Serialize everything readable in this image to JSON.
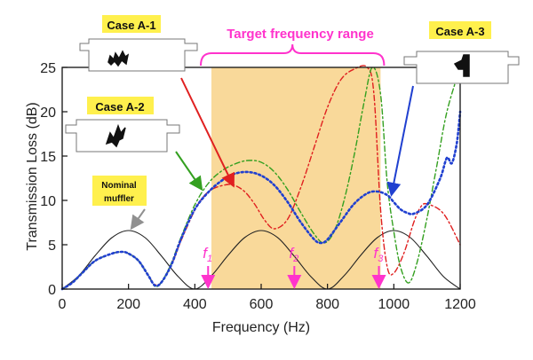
{
  "chart_data": {
    "type": "line",
    "xlabel": "Frequency (Hz)",
    "ylabel": "Transmission Loss (dB)",
    "xlim": [
      0,
      1200
    ],
    "ylim": [
      0,
      25
    ],
    "xticks": [
      0,
      200,
      400,
      600,
      800,
      1000,
      1200
    ],
    "yticks": [
      0,
      5,
      10,
      15,
      20,
      25
    ],
    "grid": false,
    "target_range": {
      "label": "Target frequency range",
      "x0": 450,
      "x1": 960,
      "color": "#f9d99a"
    },
    "frequency_markers": [
      {
        "label": "f",
        "sub": "1",
        "x": 440
      },
      {
        "label": "f",
        "sub": "2",
        "x": 700
      },
      {
        "label": "f",
        "sub": "3",
        "x": 955
      }
    ],
    "series": [
      {
        "key": "nominal",
        "color": "#222222",
        "dash": "",
        "width": 1.1,
        "x": [
          0,
          50,
          100,
          150,
          200,
          250,
          300,
          350,
          400,
          450,
          500,
          550,
          600,
          650,
          700,
          750,
          800,
          850,
          900,
          950,
          1000,
          1050,
          1100,
          1150,
          1200
        ],
        "y": [
          0,
          1.5,
          3.8,
          5.8,
          6.6,
          5.8,
          3.7,
          1.4,
          0.0,
          1.5,
          3.8,
          5.8,
          6.6,
          5.8,
          3.7,
          1.4,
          0.0,
          1.5,
          3.8,
          5.8,
          6.6,
          5.8,
          3.7,
          1.4,
          0.0
        ]
      },
      {
        "key": "A-1",
        "color": "#e02020",
        "dash": "6,3,2,3",
        "width": 1.4,
        "x": [
          0,
          30,
          60,
          100,
          150,
          180,
          200,
          230,
          260,
          280,
          300,
          330,
          360,
          400,
          430,
          460,
          500,
          520,
          550,
          580,
          610,
          640,
          680,
          720,
          760,
          800,
          840,
          880,
          920,
          940,
          960,
          980,
          1000,
          1030,
          1060,
          1080,
          1100,
          1150,
          1200
        ],
        "y": [
          0,
          0.7,
          1.8,
          3.2,
          4.0,
          4.2,
          4.0,
          3.2,
          1.5,
          0.5,
          0.8,
          2.8,
          5.6,
          8.9,
          10.6,
          11.4,
          11.8,
          11.7,
          11.0,
          9.6,
          7.8,
          6.8,
          7.9,
          11.5,
          16.0,
          20.5,
          23.6,
          24.8,
          25.0,
          22.0,
          9.0,
          2.5,
          1.8,
          4.0,
          7.5,
          9.2,
          9.6,
          8.5,
          5.0
        ]
      },
      {
        "key": "A-2",
        "color": "#34a020",
        "dash": "6,3,2,3",
        "width": 1.4,
        "x": [
          0,
          30,
          60,
          100,
          150,
          180,
          200,
          230,
          260,
          280,
          300,
          330,
          360,
          400,
          440,
          480,
          520,
          560,
          600,
          640,
          680,
          720,
          760,
          790,
          820,
          850,
          880,
          910,
          935,
          960,
          980,
          1000,
          1020,
          1045,
          1070,
          1100,
          1130,
          1160,
          1200
        ],
        "y": [
          0,
          0.7,
          1.8,
          3.2,
          4.0,
          4.2,
          4.0,
          3.2,
          1.5,
          0.3,
          0.8,
          3.0,
          6.0,
          9.5,
          11.9,
          13.3,
          14.1,
          14.5,
          14.3,
          13.2,
          11.2,
          8.6,
          6.2,
          5.2,
          6.5,
          10.0,
          15.0,
          21.0,
          25.0,
          22.0,
          12.0,
          6.5,
          2.5,
          0.7,
          3.0,
          8.0,
          14.0,
          20.0,
          25.0
        ]
      },
      {
        "key": "A-3",
        "color": "#2040d0",
        "dash": "2,3",
        "width": 2.6,
        "x": [
          0,
          30,
          60,
          100,
          150,
          180,
          200,
          230,
          260,
          280,
          300,
          330,
          360,
          400,
          440,
          480,
          520,
          560,
          600,
          640,
          680,
          720,
          760,
          780,
          800,
          840,
          880,
          920,
          950,
          980,
          1000,
          1020,
          1040,
          1060,
          1100,
          1140,
          1160,
          1175,
          1190,
          1200
        ],
        "y": [
          0,
          0.7,
          1.8,
          3.2,
          4.0,
          4.2,
          4.0,
          3.2,
          1.5,
          0.4,
          0.8,
          2.8,
          5.8,
          9.0,
          10.9,
          12.2,
          13.0,
          13.2,
          12.8,
          11.7,
          9.8,
          7.5,
          5.6,
          5.2,
          5.6,
          7.6,
          9.6,
          10.8,
          11.0,
          10.6,
          9.8,
          9.0,
          8.6,
          8.5,
          9.5,
          12.5,
          14.8,
          14.2,
          16.5,
          20.0
        ]
      }
    ],
    "annotations": [
      {
        "key": "case-a1",
        "label": "Case A-1",
        "color": "#e02020"
      },
      {
        "key": "case-a2",
        "label": "Case A-2",
        "color": "#34a020"
      },
      {
        "key": "case-a3",
        "label": "Case A-3",
        "color": "#2040d0"
      },
      {
        "key": "nominal",
        "line1": "Nominal",
        "line2": "muffler",
        "color": "#909090"
      }
    ]
  },
  "colors": {
    "label_highlight": "#fff04d",
    "target_label": "#ff33cc",
    "marker": "#ff33cc",
    "axis": "#111111"
  }
}
